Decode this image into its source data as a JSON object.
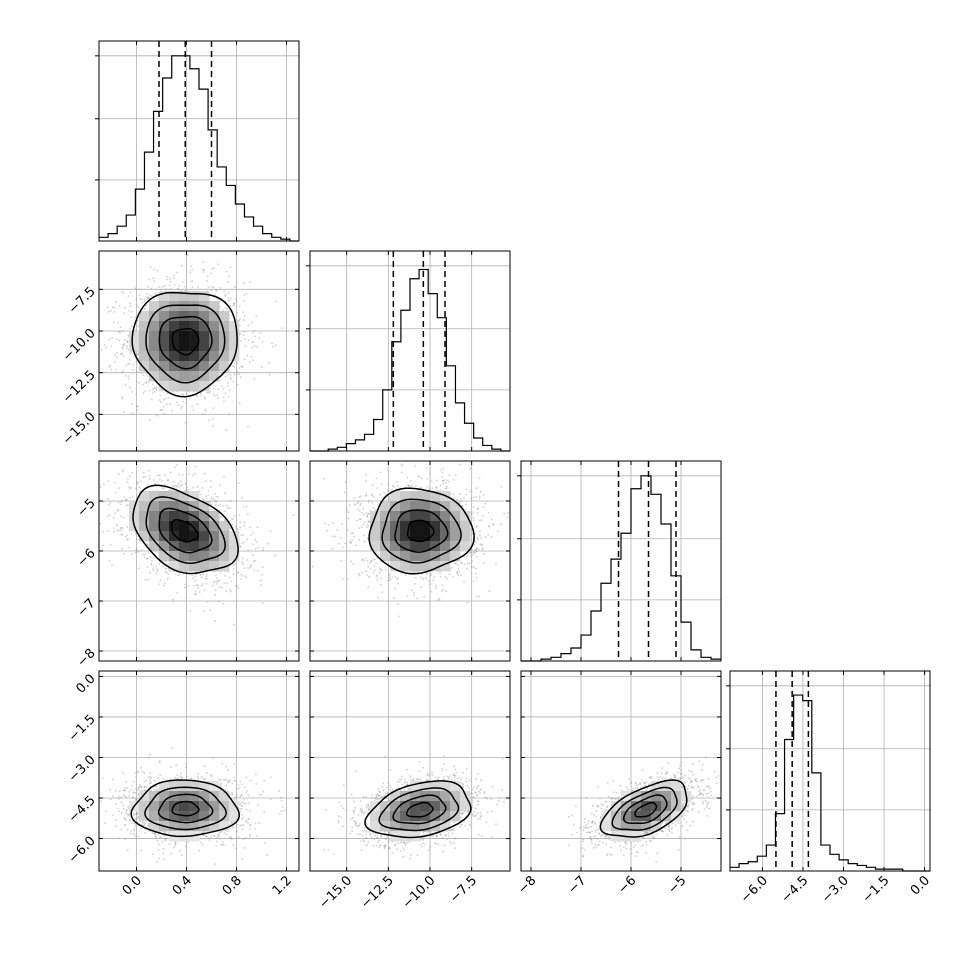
{
  "chart_data": {
    "type": "corner",
    "n_params": 4,
    "grid": true,
    "params": [
      {
        "range": [
          -0.3,
          1.3
        ],
        "ticks": [
          0.0,
          0.4,
          0.8,
          1.2
        ],
        "tick_labels": [
          "0.0",
          "0.4",
          "0.8",
          "1.2"
        ]
      },
      {
        "range": [
          -17.2,
          -5.2
        ],
        "ticks": [
          -15.0,
          -12.5,
          -10.0,
          -7.5
        ],
        "tick_labels": [
          "−15.0",
          "−12.5",
          "−10.0",
          "−7.5"
        ]
      },
      {
        "range": [
          -8.2,
          -4.2
        ],
        "ticks": [
          -8,
          -7,
          -6,
          -5
        ],
        "tick_labels": [
          "−8",
          "−7",
          "−6",
          "−5"
        ]
      },
      {
        "range": [
          -7.2,
          0.2
        ],
        "ticks": [
          -6.0,
          -4.5,
          -3.0,
          -1.5,
          0.0
        ],
        "tick_labels": [
          "−6.0",
          "−4.5",
          "−3.0",
          "−1.5",
          "0.0"
        ]
      }
    ],
    "marginals": [
      {
        "quantiles": [
          0.18,
          0.39,
          0.6
        ],
        "counts": [
          2,
          4,
          8,
          14,
          28,
          48,
          70,
          88,
          100,
          100,
          93,
          82,
          60,
          40,
          30,
          20,
          13,
          8,
          4,
          2,
          1,
          0
        ],
        "yticks": [
          33,
          66,
          100
        ]
      },
      {
        "quantiles": [
          -12.2,
          -10.4,
          -9.1
        ],
        "counts": [
          0,
          0,
          1,
          2,
          4,
          6,
          9,
          17,
          33,
          59,
          76,
          93,
          98,
          85,
          72,
          46,
          26,
          15,
          7,
          3,
          1,
          0
        ],
        "yticks": [
          33,
          66,
          100
        ]
      },
      {
        "quantiles": [
          -6.25,
          -5.65,
          -5.1
        ],
        "counts": [
          0,
          0,
          1,
          2,
          4,
          7,
          14,
          27,
          42,
          55,
          69,
          93,
          100,
          90,
          74,
          46,
          21,
          6,
          2,
          1
        ],
        "yticks": [
          33,
          66,
          100
        ]
      },
      {
        "quantiles": [
          -5.5,
          -4.9,
          -4.3
        ],
        "counts": [
          2,
          4,
          5,
          8,
          14,
          31,
          71,
          95,
          92,
          53,
          14,
          9,
          6,
          4,
          3,
          2,
          1,
          1,
          1,
          0,
          0,
          0
        ],
        "yticks": [
          33,
          66,
          100
        ]
      }
    ],
    "pairs": [
      {
        "x_param": 0,
        "y_param": 1,
        "cx": 0.39,
        "cy": -10.6,
        "sx": 0.21,
        "sy": 1.55,
        "rho": 0.0,
        "pdf_scale": 1.0
      },
      {
        "x_param": 0,
        "y_param": 2,
        "cx": 0.38,
        "cy": -5.6,
        "sx": 0.21,
        "sy": 0.43,
        "rho": -0.38,
        "pdf_scale": 1.0
      },
      {
        "x_param": 1,
        "y_param": 2,
        "cx": -10.6,
        "cy": -5.6,
        "sx": 1.55,
        "sy": 0.42,
        "rho": 0.0,
        "pdf_scale": 1.0
      },
      {
        "x_param": 0,
        "y_param": 3,
        "cx": 0.39,
        "cy": -4.9,
        "sx": 0.21,
        "sy": 0.52,
        "rho": 0.0,
        "pdf_scale": 0.75
      },
      {
        "x_param": 1,
        "y_param": 3,
        "cx": -10.6,
        "cy": -4.95,
        "sx": 1.55,
        "sy": 0.52,
        "rho": 0.3,
        "pdf_scale": 0.75
      },
      {
        "x_param": 2,
        "y_param": 3,
        "cx": -5.7,
        "cy": -4.95,
        "sx": 0.43,
        "sy": 0.52,
        "rho": 0.52,
        "pdf_scale": 0.75
      }
    ],
    "contour_levels": [
      0.5,
      1.0,
      1.5,
      2.0
    ],
    "scatter_points_per_panel": 1800
  }
}
